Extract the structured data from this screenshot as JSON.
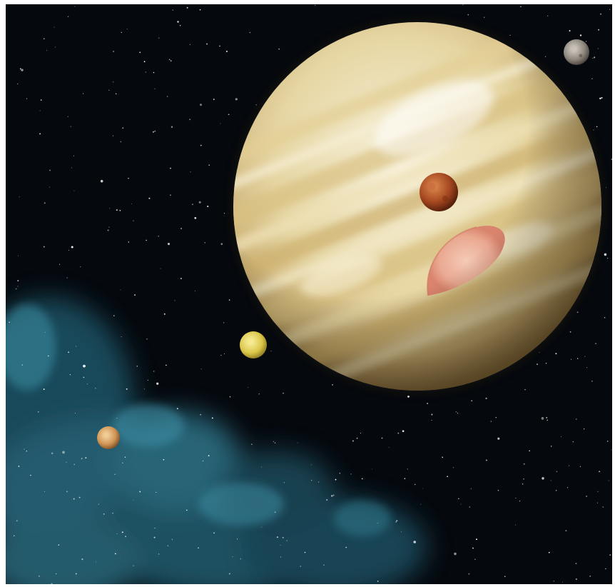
{
  "scene": {
    "subject": "",
    "colors": {
      "space": "#05080d",
      "nebula": "#2e6f86",
      "planet_light": "#f4ecd2",
      "planet_band": "#d9c48a",
      "planet_dark": "#b89b5c",
      "storm": "#e8a58e",
      "moon_near": "#b2522a",
      "moon_yellow": "#e2d15a",
      "moon_small": "#d7a05e",
      "moon_far": "#9a948c"
    }
  }
}
